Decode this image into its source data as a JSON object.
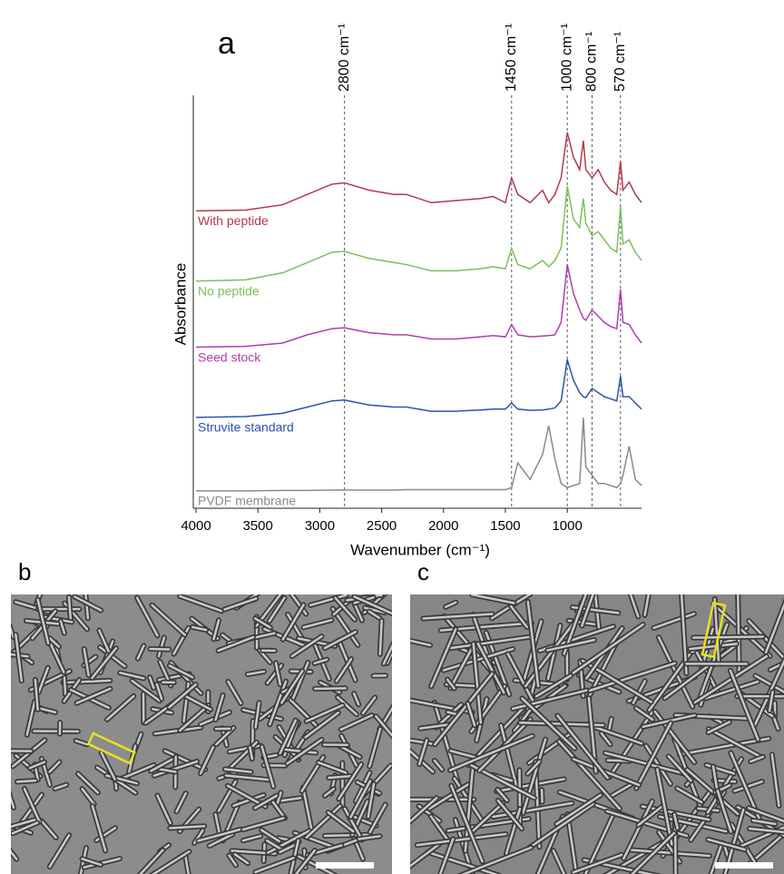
{
  "chart_data": {
    "type": "line",
    "panel_label": "a",
    "x_label": "Wavenumber (cm⁻¹)",
    "y_label": "Absorbance",
    "xlim": [
      4000,
      400
    ],
    "ylim": [
      0,
      100
    ],
    "xticks": [
      4000,
      3500,
      3000,
      2500,
      2000,
      1500,
      1000
    ],
    "x": [
      4000,
      3600,
      3300,
      3100,
      2900,
      2800,
      2600,
      2400,
      2300,
      2100,
      1900,
      1700,
      1600,
      1500,
      1450,
      1400,
      1300,
      1200,
      1150,
      1100,
      1050,
      1000,
      950,
      900,
      870,
      850,
      800,
      750,
      700,
      650,
      600,
      570,
      550,
      500,
      450,
      400
    ],
    "series": [
      {
        "name": "With peptide",
        "color": "#b5374d",
        "values": [
          72,
          72.2,
          73.5,
          76,
          78.5,
          78.8,
          77,
          76,
          76,
          74,
          74.5,
          75,
          75.5,
          74,
          80,
          76,
          74,
          77,
          74,
          76,
          80,
          91,
          85,
          82,
          89,
          82,
          80,
          82,
          79,
          77,
          76,
          84,
          77,
          79,
          76,
          74
        ]
      },
      {
        "name": "No peptide",
        "color": "#7cc05a",
        "values": [
          55,
          55.3,
          57,
          59.5,
          62,
          62.2,
          60.5,
          59.5,
          59,
          57.5,
          57.5,
          58,
          58.5,
          58,
          63,
          59,
          58,
          60,
          58.5,
          60,
          63,
          78,
          70,
          68,
          75,
          69,
          66,
          67,
          65,
          63,
          62,
          73,
          64,
          65,
          62,
          60
        ]
      },
      {
        "name": "Seed stock",
        "color": "#b03db0",
        "values": [
          39,
          39.2,
          40,
          42,
          43.5,
          43.7,
          42.5,
          42,
          42,
          41,
          41,
          41.5,
          41.8,
          41.5,
          44.5,
          42,
          41.5,
          41.7,
          41.8,
          42,
          45,
          59,
          52,
          48,
          46,
          45.5,
          48,
          46.5,
          45,
          44,
          43.5,
          53,
          45,
          44.5,
          42,
          40
        ]
      },
      {
        "name": "Struvite standard",
        "color": "#2e4fb8",
        "values": [
          22,
          22.2,
          23,
          24.5,
          26,
          26.2,
          25,
          24.5,
          24.5,
          23.5,
          23.5,
          23.8,
          24,
          24,
          25.5,
          24,
          23.7,
          23.8,
          24,
          24.3,
          26,
          36,
          31,
          28,
          27,
          26.8,
          29,
          28,
          27,
          26.5,
          26,
          32,
          27,
          27,
          25.5,
          24
        ]
      },
      {
        "name": "PVDF membrane",
        "color": "#8a8a8a",
        "values": [
          4.2,
          4.2,
          4.3,
          4.3,
          4.4,
          4.4,
          4.4,
          4.4,
          4.5,
          4.5,
          4.5,
          4.5,
          4.5,
          4.5,
          5,
          11,
          7,
          13,
          20,
          12,
          6,
          5,
          5.5,
          6,
          22,
          10,
          8,
          6,
          6,
          5.5,
          5,
          6,
          8,
          15,
          7,
          5.5
        ]
      }
    ],
    "annotations": [
      {
        "label": "2800 cm⁻¹",
        "x": 2800
      },
      {
        "label": "1450 cm⁻¹",
        "x": 1450
      },
      {
        "label": "1000 cm⁻¹",
        "x": 1000
      },
      {
        "label": "800 cm⁻¹",
        "x": 800
      },
      {
        "label": "570 cm⁻¹",
        "x": 570
      }
    ]
  },
  "panel_labels": [
    "b",
    "c"
  ]
}
